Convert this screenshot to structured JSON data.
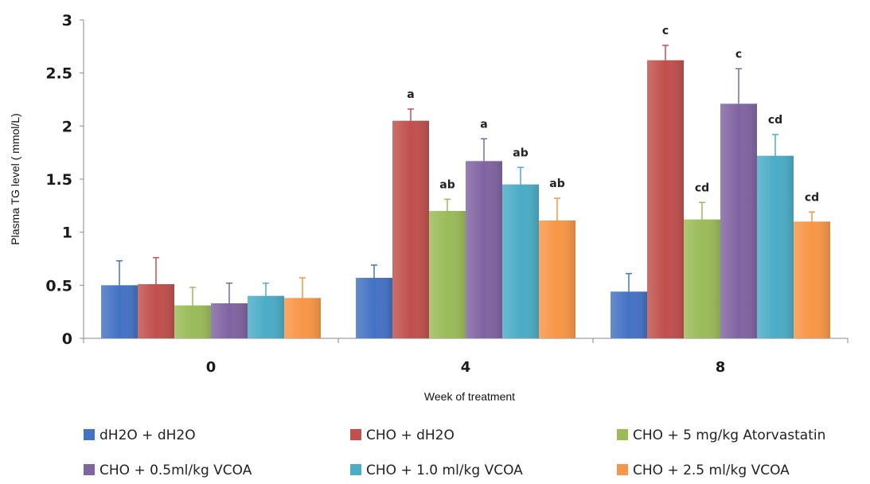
{
  "chart_data": {
    "type": "bar",
    "title": "",
    "xlabel": "Week of treatment",
    "ylabel": "Plasma TG level ( mmol/L)",
    "ylim": [
      0,
      3
    ],
    "yticks": [
      "0",
      "0.5",
      "1",
      "1.5",
      "2",
      "2.5",
      "3"
    ],
    "categories": [
      "0",
      "4",
      "8"
    ],
    "grid": false,
    "legend_position": "bottom",
    "series": [
      {
        "name": "dH2O + dH2O",
        "color": "#4472C4",
        "values": [
          0.5,
          0.57,
          0.44
        ],
        "errors": [
          0.23,
          0.12,
          0.17
        ],
        "labels": [
          "",
          "",
          ""
        ]
      },
      {
        "name": "CHO + dH2O",
        "color": "#C0504D",
        "values": [
          0.51,
          2.05,
          2.62
        ],
        "errors": [
          0.25,
          0.11,
          0.14
        ],
        "labels": [
          "",
          "a",
          "c"
        ]
      },
      {
        "name": "CHO + 5 mg/kg Atorvastatin",
        "color": "#9BBB59",
        "values": [
          0.31,
          1.2,
          1.12
        ],
        "errors": [
          0.17,
          0.11,
          0.16
        ],
        "labels": [
          "",
          "ab",
          "cd"
        ]
      },
      {
        "name": "CHO + 0.5ml/kg VCOA",
        "color": "#8064A2",
        "values": [
          0.33,
          1.67,
          2.21
        ],
        "errors": [
          0.19,
          0.21,
          0.33
        ],
        "labels": [
          "",
          "a",
          "c"
        ]
      },
      {
        "name": "CHO + 1.0 ml/kg VCOA",
        "color": "#4BACC6",
        "values": [
          0.4,
          1.45,
          1.72
        ],
        "errors": [
          0.12,
          0.16,
          0.2
        ],
        "labels": [
          "",
          "ab",
          "cd"
        ]
      },
      {
        "name": "CHO + 2.5 ml/kg VCOA",
        "color": "#F79646",
        "values": [
          0.38,
          1.11,
          1.1
        ],
        "errors": [
          0.19,
          0.21,
          0.09
        ],
        "labels": [
          "",
          "ab",
          "cd"
        ]
      }
    ]
  }
}
